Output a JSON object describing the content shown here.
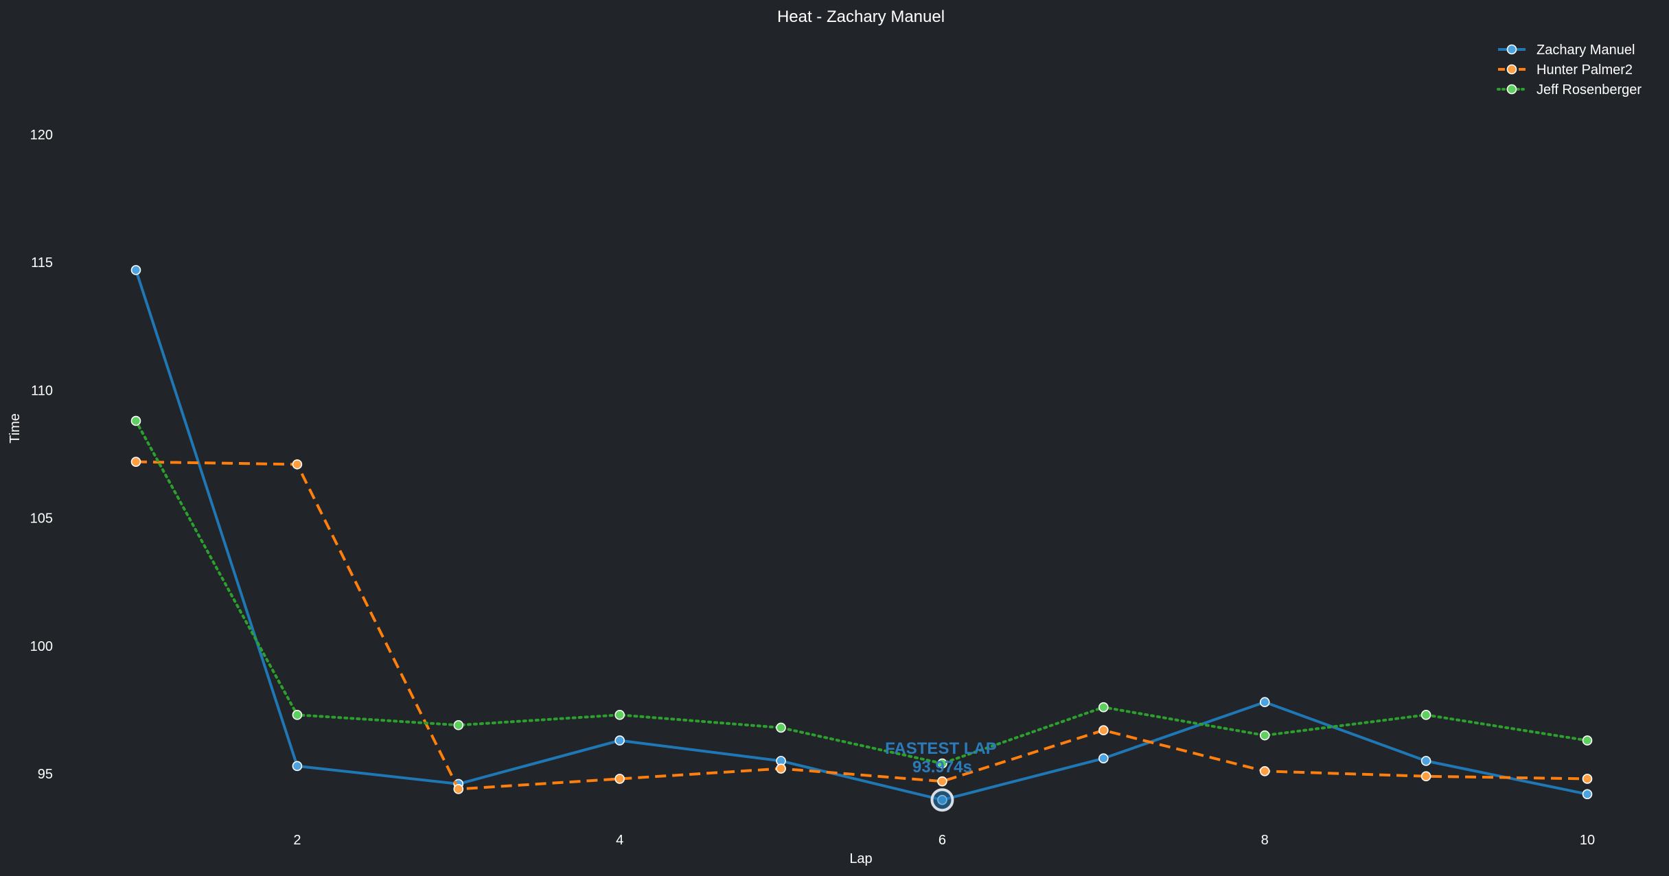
{
  "chart_data": {
    "type": "line",
    "title": "Heat - Zachary Manuel",
    "xlabel": "Lap",
    "ylabel": "Time",
    "x": [
      1,
      2,
      3,
      4,
      5,
      6,
      7,
      8,
      9,
      10
    ],
    "xticks": [
      2,
      4,
      6,
      8,
      10
    ],
    "yticks": [
      95,
      100,
      105,
      110,
      115,
      120
    ],
    "xlim": [
      0.4,
      10.5
    ],
    "ylim": [
      92.5,
      124.5
    ],
    "grid": false,
    "legend_position": "top-right",
    "series": [
      {
        "name": "Zachary Manuel",
        "values": [
          114.7,
          95.3,
          94.6,
          96.3,
          95.5,
          93.974,
          95.6,
          97.8,
          95.5,
          94.2
        ],
        "color": "#1f77b4",
        "marker_fill": "#4da3e0",
        "dash": "solid"
      },
      {
        "name": "Hunter Palmer2",
        "values": [
          107.2,
          107.1,
          94.4,
          94.8,
          95.2,
          94.7,
          96.7,
          95.1,
          94.9,
          94.8
        ],
        "color": "#ff7f0e",
        "marker_fill": "#ff9f43",
        "dash": "dashed"
      },
      {
        "name": "Jeff Rosenberger",
        "values": [
          108.8,
          97.3,
          96.9,
          97.3,
          96.8,
          95.4,
          97.6,
          96.5,
          97.3,
          96.3
        ],
        "color": "#2ca02c",
        "marker_fill": "#5fcf5f",
        "dash": "dotted"
      }
    ],
    "annotation": {
      "label": "FASTEST LAP",
      "value_text": "93.974s",
      "x": 6,
      "y": 93.974,
      "series": "Zachary Manuel"
    }
  }
}
